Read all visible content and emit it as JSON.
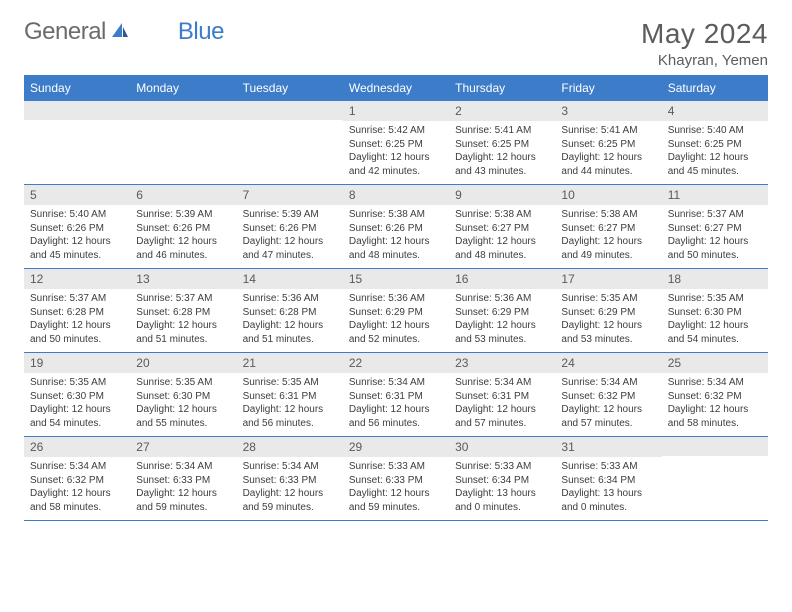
{
  "brand": {
    "part1": "General",
    "part2": "Blue"
  },
  "title": "May 2024",
  "subtitle": "Khayran, Yemen",
  "colors": {
    "header_bg": "#3d7cc9",
    "header_fg": "#ffffff",
    "daynum_bg": "#e9e9e9",
    "row_border": "#3d7cc9",
    "body_text": "#3d3d3d",
    "title_text": "#5c5c5c"
  },
  "weekdays": [
    "Sunday",
    "Monday",
    "Tuesday",
    "Wednesday",
    "Thursday",
    "Friday",
    "Saturday"
  ],
  "weeks": [
    [
      null,
      null,
      null,
      {
        "n": "1",
        "sr": "5:42 AM",
        "ss": "6:25 PM",
        "dh": "12",
        "dm": "42"
      },
      {
        "n": "2",
        "sr": "5:41 AM",
        "ss": "6:25 PM",
        "dh": "12",
        "dm": "43"
      },
      {
        "n": "3",
        "sr": "5:41 AM",
        "ss": "6:25 PM",
        "dh": "12",
        "dm": "44"
      },
      {
        "n": "4",
        "sr": "5:40 AM",
        "ss": "6:25 PM",
        "dh": "12",
        "dm": "45"
      }
    ],
    [
      {
        "n": "5",
        "sr": "5:40 AM",
        "ss": "6:26 PM",
        "dh": "12",
        "dm": "45"
      },
      {
        "n": "6",
        "sr": "5:39 AM",
        "ss": "6:26 PM",
        "dh": "12",
        "dm": "46"
      },
      {
        "n": "7",
        "sr": "5:39 AM",
        "ss": "6:26 PM",
        "dh": "12",
        "dm": "47"
      },
      {
        "n": "8",
        "sr": "5:38 AM",
        "ss": "6:26 PM",
        "dh": "12",
        "dm": "48"
      },
      {
        "n": "9",
        "sr": "5:38 AM",
        "ss": "6:27 PM",
        "dh": "12",
        "dm": "48"
      },
      {
        "n": "10",
        "sr": "5:38 AM",
        "ss": "6:27 PM",
        "dh": "12",
        "dm": "49"
      },
      {
        "n": "11",
        "sr": "5:37 AM",
        "ss": "6:27 PM",
        "dh": "12",
        "dm": "50"
      }
    ],
    [
      {
        "n": "12",
        "sr": "5:37 AM",
        "ss": "6:28 PM",
        "dh": "12",
        "dm": "50"
      },
      {
        "n": "13",
        "sr": "5:37 AM",
        "ss": "6:28 PM",
        "dh": "12",
        "dm": "51"
      },
      {
        "n": "14",
        "sr": "5:36 AM",
        "ss": "6:28 PM",
        "dh": "12",
        "dm": "51"
      },
      {
        "n": "15",
        "sr": "5:36 AM",
        "ss": "6:29 PM",
        "dh": "12",
        "dm": "52"
      },
      {
        "n": "16",
        "sr": "5:36 AM",
        "ss": "6:29 PM",
        "dh": "12",
        "dm": "53"
      },
      {
        "n": "17",
        "sr": "5:35 AM",
        "ss": "6:29 PM",
        "dh": "12",
        "dm": "53"
      },
      {
        "n": "18",
        "sr": "5:35 AM",
        "ss": "6:30 PM",
        "dh": "12",
        "dm": "54"
      }
    ],
    [
      {
        "n": "19",
        "sr": "5:35 AM",
        "ss": "6:30 PM",
        "dh": "12",
        "dm": "54"
      },
      {
        "n": "20",
        "sr": "5:35 AM",
        "ss": "6:30 PM",
        "dh": "12",
        "dm": "55"
      },
      {
        "n": "21",
        "sr": "5:35 AM",
        "ss": "6:31 PM",
        "dh": "12",
        "dm": "56"
      },
      {
        "n": "22",
        "sr": "5:34 AM",
        "ss": "6:31 PM",
        "dh": "12",
        "dm": "56"
      },
      {
        "n": "23",
        "sr": "5:34 AM",
        "ss": "6:31 PM",
        "dh": "12",
        "dm": "57"
      },
      {
        "n": "24",
        "sr": "5:34 AM",
        "ss": "6:32 PM",
        "dh": "12",
        "dm": "57"
      },
      {
        "n": "25",
        "sr": "5:34 AM",
        "ss": "6:32 PM",
        "dh": "12",
        "dm": "58"
      }
    ],
    [
      {
        "n": "26",
        "sr": "5:34 AM",
        "ss": "6:32 PM",
        "dh": "12",
        "dm": "58"
      },
      {
        "n": "27",
        "sr": "5:34 AM",
        "ss": "6:33 PM",
        "dh": "12",
        "dm": "59"
      },
      {
        "n": "28",
        "sr": "5:34 AM",
        "ss": "6:33 PM",
        "dh": "12",
        "dm": "59"
      },
      {
        "n": "29",
        "sr": "5:33 AM",
        "ss": "6:33 PM",
        "dh": "12",
        "dm": "59"
      },
      {
        "n": "30",
        "sr": "5:33 AM",
        "ss": "6:34 PM",
        "dh": "13",
        "dm": "0"
      },
      {
        "n": "31",
        "sr": "5:33 AM",
        "ss": "6:34 PM",
        "dh": "13",
        "dm": "0"
      },
      null
    ]
  ],
  "labels": {
    "sunrise": "Sunrise:",
    "sunset": "Sunset:",
    "daylight": "Daylight:",
    "hours": "hours",
    "and": "and",
    "minutes": "minutes."
  }
}
